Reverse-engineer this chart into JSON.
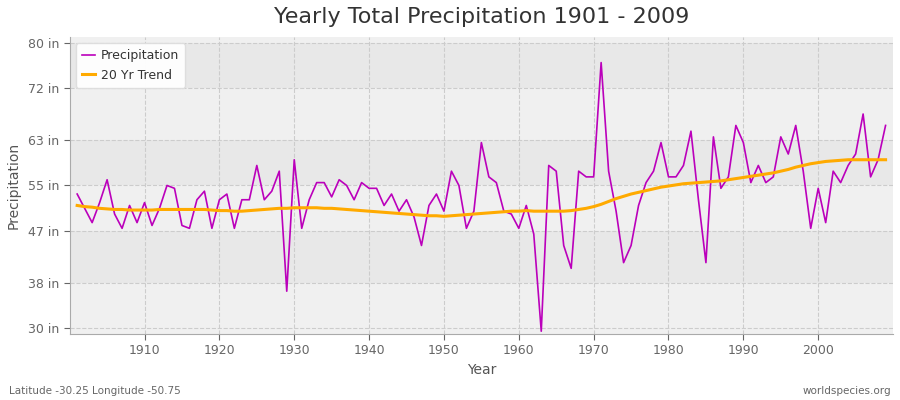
{
  "title": "Yearly Total Precipitation 1901 - 2009",
  "xlabel": "Year",
  "ylabel": "Precipitation",
  "bottom_left_label": "Latitude -30.25 Longitude -50.75",
  "bottom_right_label": "worldspecies.org",
  "years": [
    1901,
    1902,
    1903,
    1904,
    1905,
    1906,
    1907,
    1908,
    1909,
    1910,
    1911,
    1912,
    1913,
    1914,
    1915,
    1916,
    1917,
    1918,
    1919,
    1920,
    1921,
    1922,
    1923,
    1924,
    1925,
    1926,
    1927,
    1928,
    1929,
    1930,
    1931,
    1932,
    1933,
    1934,
    1935,
    1936,
    1937,
    1938,
    1939,
    1940,
    1941,
    1942,
    1943,
    1944,
    1945,
    1946,
    1947,
    1948,
    1949,
    1950,
    1951,
    1952,
    1953,
    1954,
    1955,
    1956,
    1957,
    1958,
    1959,
    1960,
    1961,
    1962,
    1963,
    1964,
    1965,
    1966,
    1967,
    1968,
    1969,
    1970,
    1971,
    1972,
    1973,
    1974,
    1975,
    1976,
    1977,
    1978,
    1979,
    1980,
    1981,
    1982,
    1983,
    1984,
    1985,
    1986,
    1987,
    1988,
    1989,
    1990,
    1991,
    1992,
    1993,
    1994,
    1995,
    1996,
    1997,
    1998,
    1999,
    2000,
    2001,
    2002,
    2003,
    2004,
    2005,
    2006,
    2007,
    2008,
    2009
  ],
  "precipitation": [
    53.5,
    51.0,
    48.5,
    52.0,
    56.0,
    50.0,
    47.5,
    51.5,
    48.5,
    52.0,
    48.0,
    51.0,
    55.0,
    54.5,
    48.0,
    47.5,
    52.5,
    54.0,
    47.5,
    52.5,
    53.5,
    47.5,
    52.5,
    52.5,
    58.5,
    52.5,
    54.0,
    57.5,
    36.5,
    59.5,
    47.5,
    52.5,
    55.5,
    55.5,
    53.0,
    56.0,
    55.0,
    52.5,
    55.5,
    54.5,
    54.5,
    51.5,
    53.5,
    50.5,
    52.5,
    49.5,
    44.5,
    51.5,
    53.5,
    50.5,
    57.5,
    55.0,
    47.5,
    50.5,
    62.5,
    56.5,
    55.5,
    50.5,
    50.0,
    47.5,
    51.5,
    46.5,
    29.5,
    58.5,
    57.5,
    44.5,
    40.5,
    57.5,
    56.5,
    56.5,
    76.5,
    57.5,
    50.5,
    41.5,
    44.5,
    51.5,
    55.5,
    57.5,
    62.5,
    56.5,
    56.5,
    58.5,
    64.5,
    52.5,
    41.5,
    63.5,
    54.5,
    56.5,
    65.5,
    62.5,
    55.5,
    58.5,
    55.5,
    56.5,
    63.5,
    60.5,
    65.5,
    57.5,
    47.5,
    54.5,
    48.5,
    57.5,
    55.5,
    58.5,
    60.5,
    67.5,
    56.5,
    59.5,
    65.5
  ],
  "trend": [
    51.5,
    51.3,
    51.2,
    51.0,
    50.9,
    50.8,
    50.8,
    50.7,
    50.7,
    50.7,
    50.7,
    50.8,
    50.8,
    50.8,
    50.8,
    50.8,
    50.8,
    50.8,
    50.7,
    50.6,
    50.6,
    50.5,
    50.5,
    50.6,
    50.7,
    50.8,
    50.9,
    51.0,
    51.0,
    51.1,
    51.1,
    51.1,
    51.1,
    51.0,
    51.0,
    50.9,
    50.8,
    50.7,
    50.6,
    50.5,
    50.4,
    50.3,
    50.2,
    50.1,
    50.0,
    49.9,
    49.8,
    49.7,
    49.7,
    49.6,
    49.7,
    49.8,
    49.9,
    50.0,
    50.1,
    50.2,
    50.3,
    50.4,
    50.5,
    50.5,
    50.6,
    50.5,
    50.5,
    50.5,
    50.5,
    50.5,
    50.6,
    50.8,
    51.0,
    51.3,
    51.7,
    52.2,
    52.7,
    53.1,
    53.5,
    53.8,
    54.1,
    54.4,
    54.7,
    54.9,
    55.1,
    55.3,
    55.4,
    55.5,
    55.6,
    55.7,
    55.8,
    56.0,
    56.2,
    56.4,
    56.6,
    56.8,
    57.0,
    57.2,
    57.5,
    57.8,
    58.2,
    58.5,
    58.8,
    59.0,
    59.2,
    59.3,
    59.4,
    59.5,
    59.5,
    59.5,
    59.5,
    59.5,
    59.5
  ],
  "ylim": [
    29,
    81
  ],
  "yticks": [
    30,
    38,
    47,
    55,
    63,
    72,
    80
  ],
  "ytick_labels": [
    "30 in",
    "38 in",
    "47 in",
    "55 in",
    "63 in",
    "72 in",
    "80 in"
  ],
  "xlim": [
    1900,
    2010
  ],
  "bg_color": "#ffffff",
  "plot_bg_color": "#f0f0f0",
  "plot_bg_alt_color": "#e8e8e8",
  "precip_color": "#bb00bb",
  "trend_color": "#ffaa00",
  "grid_color": "#cccccc",
  "title_fontsize": 16,
  "axis_label_fontsize": 10,
  "tick_fontsize": 9,
  "legend_fontsize": 9,
  "xticks": [
    1910,
    1920,
    1930,
    1940,
    1950,
    1960,
    1970,
    1980,
    1990,
    2000
  ]
}
